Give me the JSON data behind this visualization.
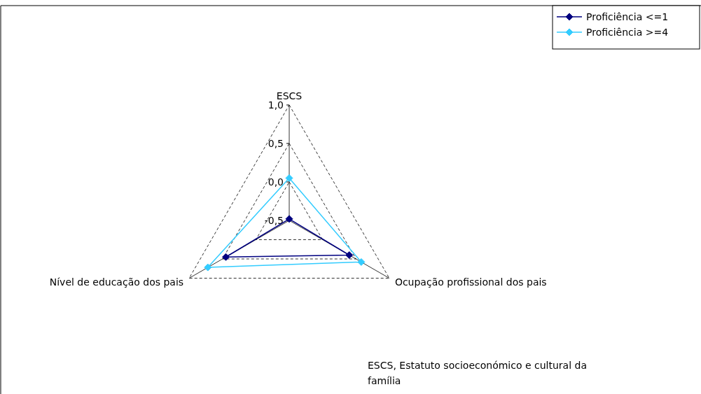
{
  "chart_data": {
    "type": "radar",
    "categories": [
      "ESCS",
      "Ocupação profissional dos pais",
      "Nível de educação dos pais"
    ],
    "series": [
      {
        "name": "Proficiência <=1",
        "color": "#000080",
        "values": [
          -0.48,
          0.4,
          0.45
        ]
      },
      {
        "name": "Proficiência >=4",
        "color": "#33ccff",
        "values": [
          0.05,
          0.58,
          0.72
        ]
      }
    ],
    "ylim": [
      -0.5,
      1.0
    ],
    "yticks": [
      {
        "value": -0.5,
        "label": "-0,5"
      },
      {
        "value": 0,
        "label": "0,0"
      },
      {
        "value": 0.5,
        "label": "0,5"
      },
      {
        "value": 1,
        "label": "1,0"
      }
    ],
    "grid": true,
    "legend": "top right",
    "marker": "diamond",
    "line_style": "solid",
    "annotations": [
      "ESCS, Estatuto socioeconómico e cultural da família"
    ]
  }
}
